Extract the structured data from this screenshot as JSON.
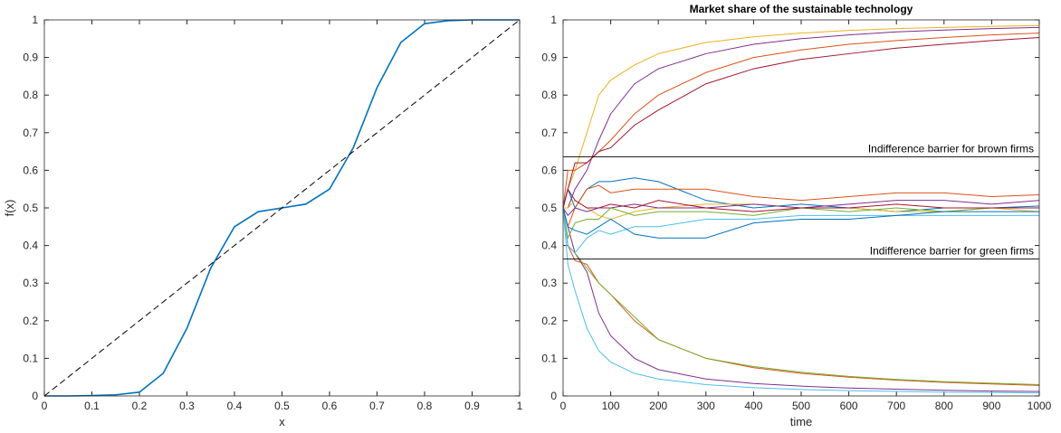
{
  "chart_data": [
    {
      "type": "line",
      "xlabel": "x",
      "ylabel": "f(x)",
      "x": [
        0,
        0.05,
        0.1,
        0.15,
        0.2,
        0.25,
        0.3,
        0.35,
        0.4,
        0.45,
        0.5,
        0.55,
        0.6,
        0.65,
        0.7,
        0.75,
        0.8,
        0.85,
        0.9,
        0.95,
        1
      ],
      "series": [
        {
          "color": "#0072bd",
          "style": "solid",
          "values": [
            0,
            0,
            0.001,
            0.003,
            0.01,
            0.06,
            0.18,
            0.34,
            0.45,
            0.49,
            0.5,
            0.51,
            0.55,
            0.66,
            0.82,
            0.94,
            0.99,
            0.998,
            1,
            1,
            1
          ]
        },
        {
          "color": "#000000",
          "style": "dashed",
          "values": [
            0,
            0.05,
            0.1,
            0.15,
            0.2,
            0.25,
            0.3,
            0.35,
            0.4,
            0.45,
            0.5,
            0.55,
            0.6,
            0.65,
            0.7,
            0.75,
            0.8,
            0.85,
            0.9,
            0.95,
            1
          ]
        }
      ],
      "xlim": [
        0,
        1
      ],
      "ylim": [
        0,
        1
      ],
      "xticks": [
        0,
        0.1,
        0.2,
        0.3,
        0.4,
        0.5,
        0.6,
        0.7,
        0.8,
        0.9,
        1
      ],
      "yticks": [
        0,
        0.1,
        0.2,
        0.3,
        0.4,
        0.5,
        0.6,
        0.7,
        0.8,
        0.9,
        1
      ]
    },
    {
      "type": "line",
      "title": "Market share of the sustainable technology",
      "xlabel": "time",
      "x": [
        0,
        10,
        25,
        50,
        75,
        100,
        150,
        200,
        300,
        400,
        500,
        600,
        700,
        800,
        900,
        1000
      ],
      "series": [
        {
          "color": "#edb120",
          "values": [
            0.5,
            0.55,
            0.6,
            0.7,
            0.8,
            0.84,
            0.88,
            0.91,
            0.94,
            0.955,
            0.965,
            0.972,
            0.977,
            0.98,
            0.983,
            0.985
          ]
        },
        {
          "color": "#7e2f8e",
          "values": [
            0.5,
            0.5,
            0.55,
            0.6,
            0.68,
            0.75,
            0.83,
            0.87,
            0.91,
            0.935,
            0.95,
            0.96,
            0.968,
            0.973,
            0.977,
            0.98
          ]
        },
        {
          "color": "#d95319",
          "values": [
            0.5,
            0.6,
            0.6,
            0.62,
            0.65,
            0.68,
            0.75,
            0.8,
            0.86,
            0.9,
            0.92,
            0.935,
            0.945,
            0.953,
            0.96,
            0.965
          ]
        },
        {
          "color": "#a2142f",
          "values": [
            0.5,
            0.55,
            0.62,
            0.62,
            0.65,
            0.66,
            0.72,
            0.76,
            0.83,
            0.87,
            0.895,
            0.91,
            0.925,
            0.935,
            0.945,
            0.953
          ]
        },
        {
          "color": "#7e2f8e",
          "values": [
            0.5,
            0.45,
            0.38,
            0.33,
            0.22,
            0.16,
            0.1,
            0.07,
            0.045,
            0.033,
            0.026,
            0.021,
            0.018,
            0.015,
            0.013,
            0.012
          ]
        },
        {
          "color": "#4dbeee",
          "values": [
            0.5,
            0.35,
            0.28,
            0.18,
            0.12,
            0.09,
            0.06,
            0.045,
            0.03,
            0.022,
            0.017,
            0.014,
            0.012,
            0.01,
            0.009,
            0.008
          ]
        },
        {
          "color": "#d95319",
          "values": [
            0.5,
            0.4,
            0.36,
            0.35,
            0.3,
            0.27,
            0.2,
            0.15,
            0.1,
            0.075,
            0.06,
            0.05,
            0.042,
            0.036,
            0.032,
            0.028
          ]
        },
        {
          "color": "#77ac30",
          "values": [
            0.5,
            0.4,
            0.38,
            0.34,
            0.3,
            0.27,
            0.21,
            0.15,
            0.1,
            0.078,
            0.063,
            0.052,
            0.044,
            0.038,
            0.034,
            0.03
          ]
        },
        {
          "color": "#0072bd",
          "values": [
            0.5,
            0.55,
            0.5,
            0.55,
            0.57,
            0.57,
            0.58,
            0.57,
            0.52,
            0.5,
            0.51,
            0.5,
            0.49,
            0.5,
            0.5,
            0.505
          ]
        },
        {
          "color": "#d95319",
          "values": [
            0.5,
            0.45,
            0.5,
            0.55,
            0.56,
            0.54,
            0.55,
            0.55,
            0.55,
            0.53,
            0.52,
            0.53,
            0.54,
            0.54,
            0.53,
            0.535
          ]
        },
        {
          "color": "#edb120",
          "values": [
            0.5,
            0.5,
            0.52,
            0.5,
            0.48,
            0.47,
            0.49,
            0.5,
            0.51,
            0.51,
            0.5,
            0.5,
            0.49,
            0.49,
            0.5,
            0.49
          ]
        },
        {
          "color": "#7e2f8e",
          "values": [
            0.5,
            0.48,
            0.5,
            0.49,
            0.5,
            0.5,
            0.51,
            0.5,
            0.5,
            0.51,
            0.5,
            0.51,
            0.52,
            0.52,
            0.51,
            0.52
          ]
        },
        {
          "color": "#77ac30",
          "values": [
            0.5,
            0.42,
            0.46,
            0.47,
            0.47,
            0.5,
            0.48,
            0.49,
            0.49,
            0.48,
            0.5,
            0.49,
            0.5,
            0.49,
            0.5,
            0.5
          ]
        },
        {
          "color": "#4dbeee",
          "values": [
            0.5,
            0.4,
            0.38,
            0.42,
            0.44,
            0.43,
            0.45,
            0.45,
            0.47,
            0.47,
            0.48,
            0.48,
            0.48,
            0.48,
            0.48,
            0.48
          ]
        },
        {
          "color": "#a2142f",
          "values": [
            0.5,
            0.55,
            0.52,
            0.5,
            0.5,
            0.51,
            0.5,
            0.52,
            0.5,
            0.49,
            0.5,
            0.5,
            0.51,
            0.5,
            0.5,
            0.5
          ]
        },
        {
          "color": "#0072bd",
          "values": [
            0.5,
            0.45,
            0.44,
            0.43,
            0.45,
            0.47,
            0.43,
            0.42,
            0.42,
            0.46,
            0.47,
            0.47,
            0.48,
            0.49,
            0.49,
            0.49
          ]
        }
      ],
      "barriers": [
        {
          "label": "Indifference barrier for brown firms",
          "value": 0.636
        },
        {
          "label": "Indifference barrier for green firms",
          "value": 0.364
        }
      ],
      "xlim": [
        0,
        1000
      ],
      "ylim": [
        0,
        1
      ],
      "xticks": [
        0,
        100,
        200,
        300,
        400,
        500,
        600,
        700,
        800,
        900,
        1000
      ],
      "yticks": [
        0,
        0.1,
        0.2,
        0.3,
        0.4,
        0.5,
        0.6,
        0.7,
        0.8,
        0.9,
        1
      ]
    }
  ]
}
